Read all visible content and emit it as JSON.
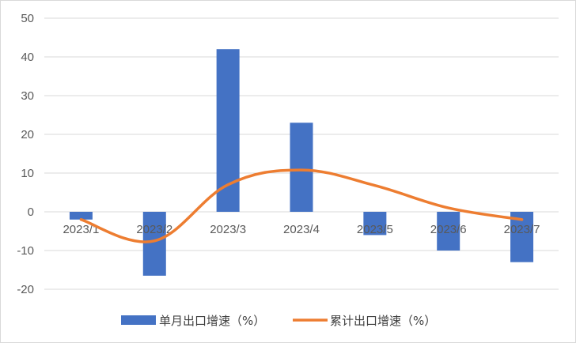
{
  "chart_data": {
    "type": "bar",
    "categories": [
      "2023/1",
      "2023/2",
      "2023/3",
      "2023/4",
      "2023/5",
      "2023/6",
      "2023/7"
    ],
    "series": [
      {
        "name": "单月出口增速（%）",
        "type": "bar",
        "color": "#4472C4",
        "values": [
          -2,
          -16.5,
          42,
          23,
          -6,
          -10,
          -13
        ]
      },
      {
        "name": "累计出口增速（%）",
        "type": "line",
        "color": "#ED7D31",
        "values": [
          -2,
          -7.5,
          7,
          10.8,
          6.8,
          1,
          -2
        ]
      }
    ],
    "yticks": [
      50,
      40,
      30,
      20,
      10,
      0,
      -10,
      -20
    ],
    "ylim": [
      -20,
      50
    ],
    "grid": true,
    "legend_position": "bottom",
    "title": "",
    "xlabel": "",
    "ylabel": ""
  }
}
